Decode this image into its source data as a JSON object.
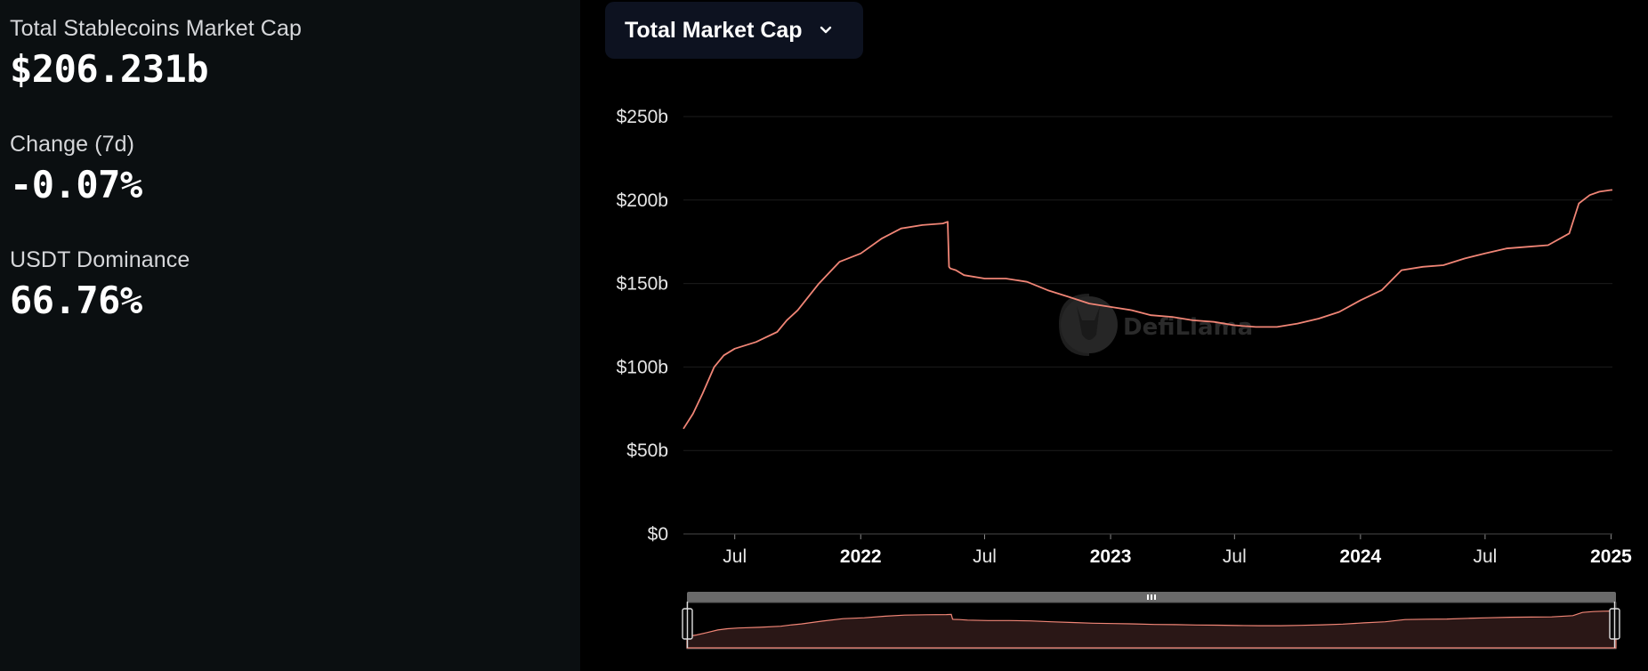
{
  "stats": [
    {
      "label": "Total Stablecoins Market Cap",
      "value": "$206.231b"
    },
    {
      "label": "Change (7d)",
      "value": "-0.07%"
    },
    {
      "label": "USDT Dominance",
      "value": "66.76%"
    }
  ],
  "dropdown": {
    "label": "Total Market Cap",
    "icon": "chevron-down-icon"
  },
  "watermark": {
    "text": "DefiLlama",
    "icon": "llama-logo-icon"
  },
  "colors": {
    "line": "#f08576",
    "area": "#2a1716",
    "left_bg": "#0b0f11",
    "plot_bg": "#000000"
  },
  "chart_data": {
    "type": "line",
    "title": "",
    "xlabel": "",
    "ylabel": "",
    "ylim": [
      0,
      250
    ],
    "y_unit": "billion USD",
    "y_ticks": [
      "$0",
      "$50b",
      "$100b",
      "$150b",
      "$200b",
      "$250b"
    ],
    "x_ticks": [
      {
        "label": "Jul",
        "date": "2021-07-01",
        "year": false
      },
      {
        "label": "2022",
        "date": "2022-01-01",
        "year": true
      },
      {
        "label": "Jul",
        "date": "2022-07-01",
        "year": false
      },
      {
        "label": "2023",
        "date": "2023-01-01",
        "year": true
      },
      {
        "label": "Jul",
        "date": "2023-07-01",
        "year": false
      },
      {
        "label": "2024",
        "date": "2024-01-01",
        "year": true
      },
      {
        "label": "Jul",
        "date": "2024-07-01",
        "year": false
      },
      {
        "label": "2025",
        "date": "2025-01-01",
        "year": true
      }
    ],
    "xlim": [
      "2021-04-17",
      "2025-01-03"
    ],
    "grid": true,
    "series": [
      {
        "x": [
          "2021-04-17",
          "2021-05-01",
          "2021-05-15",
          "2021-06-01",
          "2021-06-15",
          "2021-07-01",
          "2021-08-01",
          "2021-09-01",
          "2021-09-15",
          "2021-10-01",
          "2021-11-01",
          "2021-12-01",
          "2022-01-01",
          "2022-02-01",
          "2022-03-01",
          "2022-04-01",
          "2022-05-01",
          "2022-05-08",
          "2022-05-10",
          "2022-05-12",
          "2022-05-20",
          "2022-06-01",
          "2022-07-01",
          "2022-08-01",
          "2022-09-01",
          "2022-10-01",
          "2022-11-01",
          "2022-12-01",
          "2023-01-01",
          "2023-02-01",
          "2023-03-01",
          "2023-04-01",
          "2023-05-01",
          "2023-06-01",
          "2023-07-01",
          "2023-08-01",
          "2023-09-01",
          "2023-10-01",
          "2023-11-01",
          "2023-12-01",
          "2024-01-01",
          "2024-02-01",
          "2024-03-01",
          "2024-04-01",
          "2024-05-01",
          "2024-06-01",
          "2024-07-01",
          "2024-08-01",
          "2024-09-01",
          "2024-10-01",
          "2024-11-01",
          "2024-11-15",
          "2024-12-01",
          "2024-12-15",
          "2025-01-01",
          "2025-01-03"
        ],
        "values": [
          63,
          72,
          84,
          100,
          107,
          111,
          115,
          121,
          128,
          134,
          150,
          163,
          168,
          177,
          183,
          185,
          186,
          187,
          160,
          159,
          158,
          155,
          153,
          153,
          151,
          146,
          142,
          138,
          136,
          134,
          131,
          130,
          128,
          127,
          125,
          124,
          124,
          126,
          129,
          133,
          140,
          146,
          158,
          160,
          161,
          165,
          168,
          171,
          172,
          173,
          180,
          198,
          203,
          205,
          206,
          206
        ]
      }
    ]
  }
}
